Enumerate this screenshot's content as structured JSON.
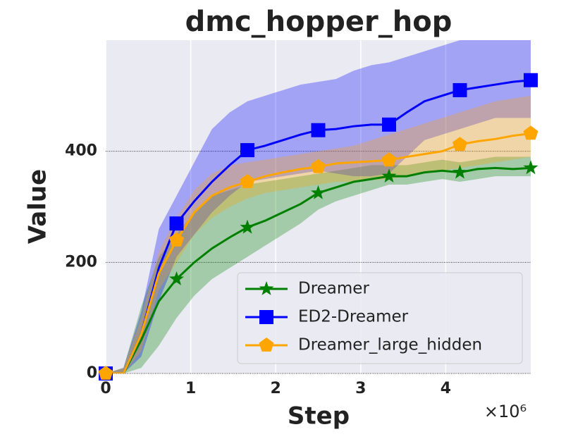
{
  "chart_data": {
    "type": "line",
    "title": "dmc_hopper_hop",
    "xlabel": "Step",
    "ylabel": "Value",
    "x_offset_label": "×10⁶",
    "x": [
      0,
      208333,
      416667,
      625000,
      833333,
      1041667,
      1250000,
      1458333,
      1666667,
      1875000,
      2083333,
      2291667,
      2500000,
      2708333,
      2916667,
      3125000,
      3333333,
      3541667,
      3750000,
      3958333,
      4166667,
      4375000,
      4583333,
      4791667,
      5000000
    ],
    "marker_every": 4,
    "series": [
      {
        "name": "Dreamer",
        "color": "#008000",
        "marker": "star",
        "values": [
          0,
          0,
          60,
          130,
          170,
          200,
          225,
          245,
          263,
          275,
          290,
          305,
          325,
          335,
          345,
          350,
          355,
          355,
          362,
          365,
          362,
          368,
          370,
          368,
          370
        ],
        "lower": [
          0,
          0,
          10,
          50,
          100,
          140,
          170,
          190,
          210,
          230,
          250,
          270,
          295,
          310,
          320,
          330,
          340,
          340,
          345,
          350,
          345,
          350,
          355,
          355,
          355
        ],
        "upper": [
          0,
          10,
          120,
          210,
          250,
          290,
          320,
          330,
          340,
          345,
          350,
          355,
          360,
          365,
          370,
          375,
          375,
          375,
          380,
          385,
          380,
          385,
          390,
          390,
          390
        ]
      },
      {
        "name": "ED2-Dreamer",
        "color": "#0000ff",
        "marker": "square",
        "values": [
          0,
          0,
          70,
          190,
          270,
          310,
          345,
          375,
          402,
          410,
          420,
          430,
          438,
          440,
          445,
          448,
          448,
          470,
          490,
          500,
          510,
          515,
          520,
          525,
          528
        ],
        "lower": [
          0,
          0,
          30,
          130,
          210,
          250,
          290,
          320,
          345,
          350,
          355,
          360,
          365,
          360,
          355,
          355,
          360,
          390,
          420,
          430,
          440,
          450,
          460,
          460,
          460
        ],
        "upper": [
          0,
          10,
          110,
          260,
          320,
          380,
          440,
          470,
          490,
          500,
          510,
          520,
          525,
          530,
          545,
          555,
          560,
          570,
          580,
          590,
          600,
          600,
          600,
          600,
          600
        ]
      },
      {
        "name": "Dreamer_large_hidden",
        "color": "#ffa500",
        "marker": "pentagon",
        "values": [
          0,
          0,
          70,
          180,
          240,
          290,
          320,
          335,
          345,
          355,
          362,
          368,
          372,
          378,
          380,
          382,
          384,
          390,
          395,
          400,
          412,
          418,
          422,
          428,
          432
        ],
        "lower": [
          0,
          0,
          40,
          150,
          200,
          250,
          280,
          300,
          315,
          325,
          330,
          335,
          340,
          345,
          345,
          348,
          350,
          355,
          360,
          365,
          370,
          375,
          380,
          385,
          390
        ],
        "upper": [
          0,
          10,
          100,
          220,
          280,
          330,
          360,
          375,
          380,
          385,
          390,
          395,
          400,
          405,
          410,
          420,
          430,
          440,
          450,
          460,
          470,
          480,
          490,
          495,
          500
        ]
      }
    ],
    "xlim": [
      0,
      5000000
    ],
    "xticks": [
      {
        "value": 0,
        "label": "0"
      },
      {
        "value": 1000000,
        "label": "1"
      },
      {
        "value": 2000000,
        "label": "2"
      },
      {
        "value": 3000000,
        "label": "3"
      },
      {
        "value": 4000000,
        "label": "4"
      }
    ],
    "ylim": [
      0,
      600
    ],
    "yticks": [
      0,
      200,
      400
    ],
    "grid": true,
    "legend": "lower right",
    "band_opacity": 0.3,
    "background": "#eaeaf2"
  }
}
